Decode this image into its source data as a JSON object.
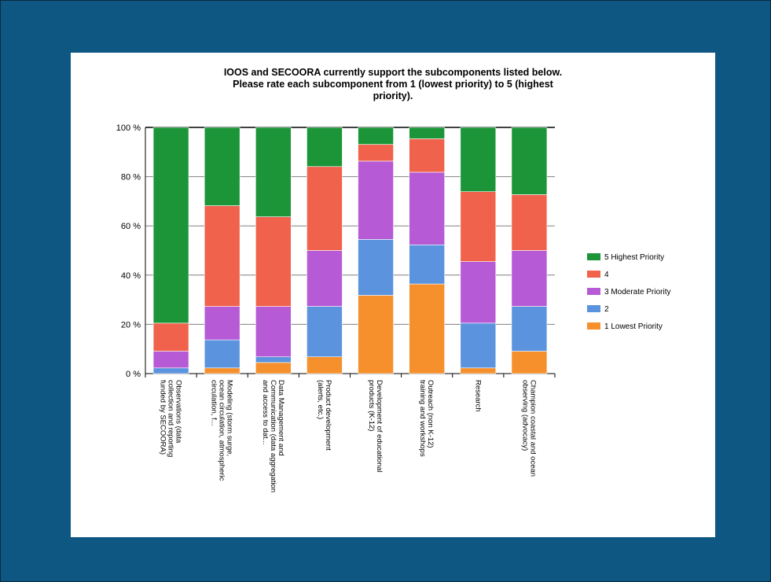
{
  "chart_data": {
    "type": "bar",
    "stacked": true,
    "percent": true,
    "title_lines": [
      "IOOS and SECOORA currently support the subcomponents listed below.",
      "Please rate each subcomponent from 1 (lowest priority) to 5 (highest",
      "priority)."
    ],
    "categories": [
      [
        "Observations (data",
        "collection and reporting",
        "funded by SECOORA)"
      ],
      [
        "Modeling (storm surge,",
        "ocean circulation, atmospheric",
        "circulation, f..."
      ],
      [
        "Data Management and",
        "Communication (data aggregation",
        "and access to dat..."
      ],
      [
        "Product development",
        "(alerts, etc.)"
      ],
      [
        "Development of educational",
        "products (K-12)"
      ],
      [
        "Outreach (non K-12)",
        "training and workshops"
      ],
      [
        "Research"
      ],
      [
        "Champion coastal and ocean",
        "observing (advocacy)"
      ]
    ],
    "y_ticks": [
      "0 %",
      "20 %",
      "40 %",
      "60 %",
      "80 %",
      "100 %"
    ],
    "ylim": [
      0,
      100
    ],
    "legend_position": "right",
    "series": [
      {
        "name": "1 Lowest Priority",
        "color": "#f5902c",
        "values": [
          0,
          2.3,
          4.5,
          6.8,
          31.8,
          36.4,
          2.3,
          9.1
        ]
      },
      {
        "name": "2",
        "color": "#5b93de",
        "values": [
          2.3,
          11.4,
          2.3,
          20.5,
          22.7,
          15.9,
          18.2,
          18.2
        ]
      },
      {
        "name": "3 Moderate Priority",
        "color": "#b65ad6",
        "values": [
          6.8,
          13.6,
          20.5,
          22.7,
          31.8,
          29.5,
          25.0,
          22.7
        ]
      },
      {
        "name": "4",
        "color": "#f0624b",
        "values": [
          11.4,
          40.9,
          36.4,
          34.1,
          6.8,
          13.6,
          28.4,
          22.7
        ]
      },
      {
        "name": "5 Highest Priority",
        "color": "#1b9538",
        "values": [
          79.5,
          31.8,
          36.3,
          15.9,
          6.9,
          4.6,
          26.1,
          27.3
        ]
      }
    ]
  }
}
